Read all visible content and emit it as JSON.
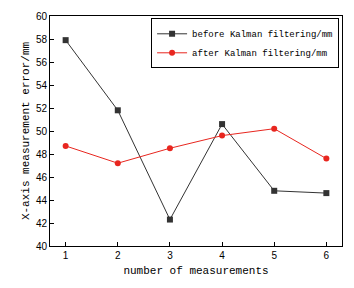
{
  "chart_data": {
    "type": "line",
    "x": [
      1,
      2,
      3,
      4,
      5,
      6
    ],
    "x_label": "number of measurements",
    "y_label": "X-axis measurement error/mm",
    "xlim": [
      0.7,
      6.3
    ],
    "xticks": [
      1,
      2,
      3,
      4,
      5,
      6
    ],
    "ylim": [
      40,
      60
    ],
    "yticks": [
      40,
      42,
      44,
      46,
      48,
      50,
      52,
      54,
      56,
      58,
      60
    ],
    "grid": false,
    "legend": "top right",
    "series": [
      {
        "name": "before Kalman filtering/mm",
        "color": "#333333",
        "marker": "square",
        "line_style": "solid",
        "values": [
          57.9,
          51.8,
          42.3,
          50.6,
          44.8,
          44.6
        ]
      },
      {
        "name": "after Kalman filtering/mm",
        "color": "#e8261f",
        "marker": "circle",
        "line_style": "solid",
        "values": [
          48.7,
          47.2,
          48.5,
          49.6,
          50.2,
          47.6
        ]
      }
    ]
  }
}
